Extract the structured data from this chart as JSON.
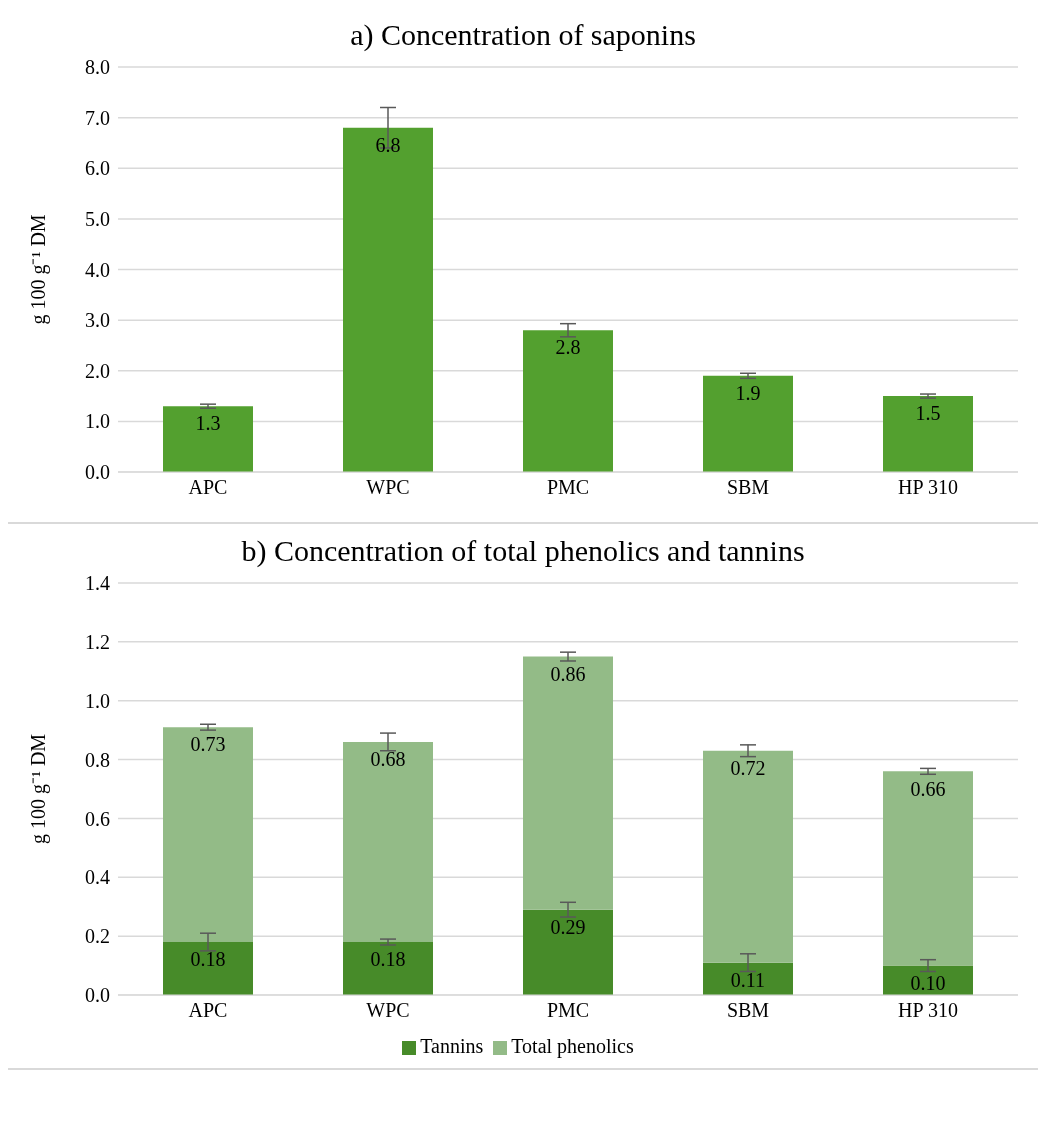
{
  "chart_data": [
    {
      "type": "bar",
      "title": "a) Concentration of saponins",
      "ylabel": "g 100 g⁻¹ DM",
      "categories": [
        "APC",
        "WPC",
        "PMC",
        "SBM",
        "HP 310"
      ],
      "values": [
        1.3,
        6.8,
        2.8,
        1.9,
        1.5
      ],
      "errors": [
        0.04,
        0.4,
        0.13,
        0.05,
        0.04
      ],
      "color": "#53a02f",
      "ylim": [
        0,
        8
      ],
      "yticks": [
        {
          "value": 0,
          "label": "0.0"
        },
        {
          "value": 1,
          "label": "1.0"
        },
        {
          "value": 2,
          "label": "2.0"
        },
        {
          "value": 3,
          "label": "3.0"
        },
        {
          "value": 4,
          "label": "4.0"
        },
        {
          "value": 5,
          "label": "5.0"
        },
        {
          "value": 6,
          "label": "6.0"
        },
        {
          "value": 7,
          "label": "7.0"
        },
        {
          "value": 8,
          "label": "8.0"
        }
      ],
      "grid": "y",
      "data_labels": true
    },
    {
      "type": "bar",
      "title": "b) Concentration of total phenolics and tannins",
      "ylabel": "g 100 g⁻¹ DM",
      "categories": [
        "APC",
        "WPC",
        "PMC",
        "SBM",
        "HP 310"
      ],
      "stacked": true,
      "series": [
        {
          "name": "Tannins",
          "color": "#478b29",
          "values": [
            0.18,
            0.18,
            0.29,
            0.11,
            0.1
          ],
          "value_labels": [
            "0.18",
            "0.18",
            "0.29",
            "0.11",
            "0.10"
          ],
          "errors": [
            0.03,
            0.01,
            0.025,
            0.03,
            0.02
          ]
        },
        {
          "name": "Total phenolics",
          "color": "#93bb87",
          "values": [
            0.73,
            0.68,
            0.86,
            0.72,
            0.66
          ],
          "value_labels": [
            "0.73",
            "0.68",
            "0.86",
            "0.72",
            "0.66"
          ],
          "errors": [
            0.01,
            0.03,
            0.015,
            0.02,
            0.01
          ]
        }
      ],
      "ylim": [
        0,
        1.4
      ],
      "yticks": [
        {
          "value": 0,
          "label": "0.0"
        },
        {
          "value": 0.2,
          "label": "0.2"
        },
        {
          "value": 0.4,
          "label": "0.4"
        },
        {
          "value": 0.6,
          "label": "0.6"
        },
        {
          "value": 0.8,
          "label": "0.8"
        },
        {
          "value": 1,
          "label": "1.0"
        },
        {
          "value": 1.2,
          "label": "1.2"
        },
        {
          "value": 1.4,
          "label": "1.4"
        }
      ],
      "grid": "y",
      "legend": "bottom"
    }
  ]
}
